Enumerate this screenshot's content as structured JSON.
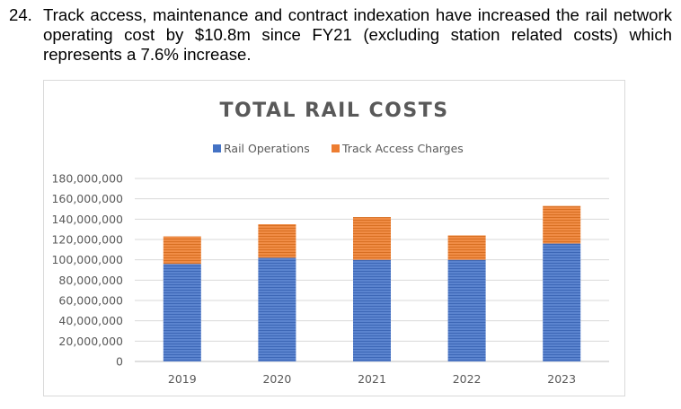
{
  "paragraph": {
    "number": "24.",
    "text": "Track access, maintenance and contract indexation have increased the rail network operating cost by $10.8m since FY21 (excluding station related costs) which represents a 7.6% increase."
  },
  "colors": {
    "rail_operations": "#4472c4",
    "track_access": "#ed7d31"
  },
  "chart_data": {
    "type": "bar",
    "stacked": true,
    "title": "TOTAL RAIL COSTS",
    "categories": [
      "2019",
      "2020",
      "2021",
      "2022",
      "2023"
    ],
    "series": [
      {
        "name": "Rail Operations",
        "values": [
          96000000,
          102000000,
          100000000,
          100000000,
          116000000
        ]
      },
      {
        "name": "Track Access Charges",
        "values": [
          27000000,
          33000000,
          42000000,
          24000000,
          37000000
        ]
      }
    ],
    "ylim": [
      0,
      180000000
    ],
    "yticks": [
      "0",
      "20,000,000",
      "40,000,000",
      "60,000,000",
      "80,000,000",
      "100,000,000",
      "120,000,000",
      "140,000,000",
      "160,000,000",
      "180,000,000"
    ],
    "legend_position": "top",
    "grid": true
  }
}
